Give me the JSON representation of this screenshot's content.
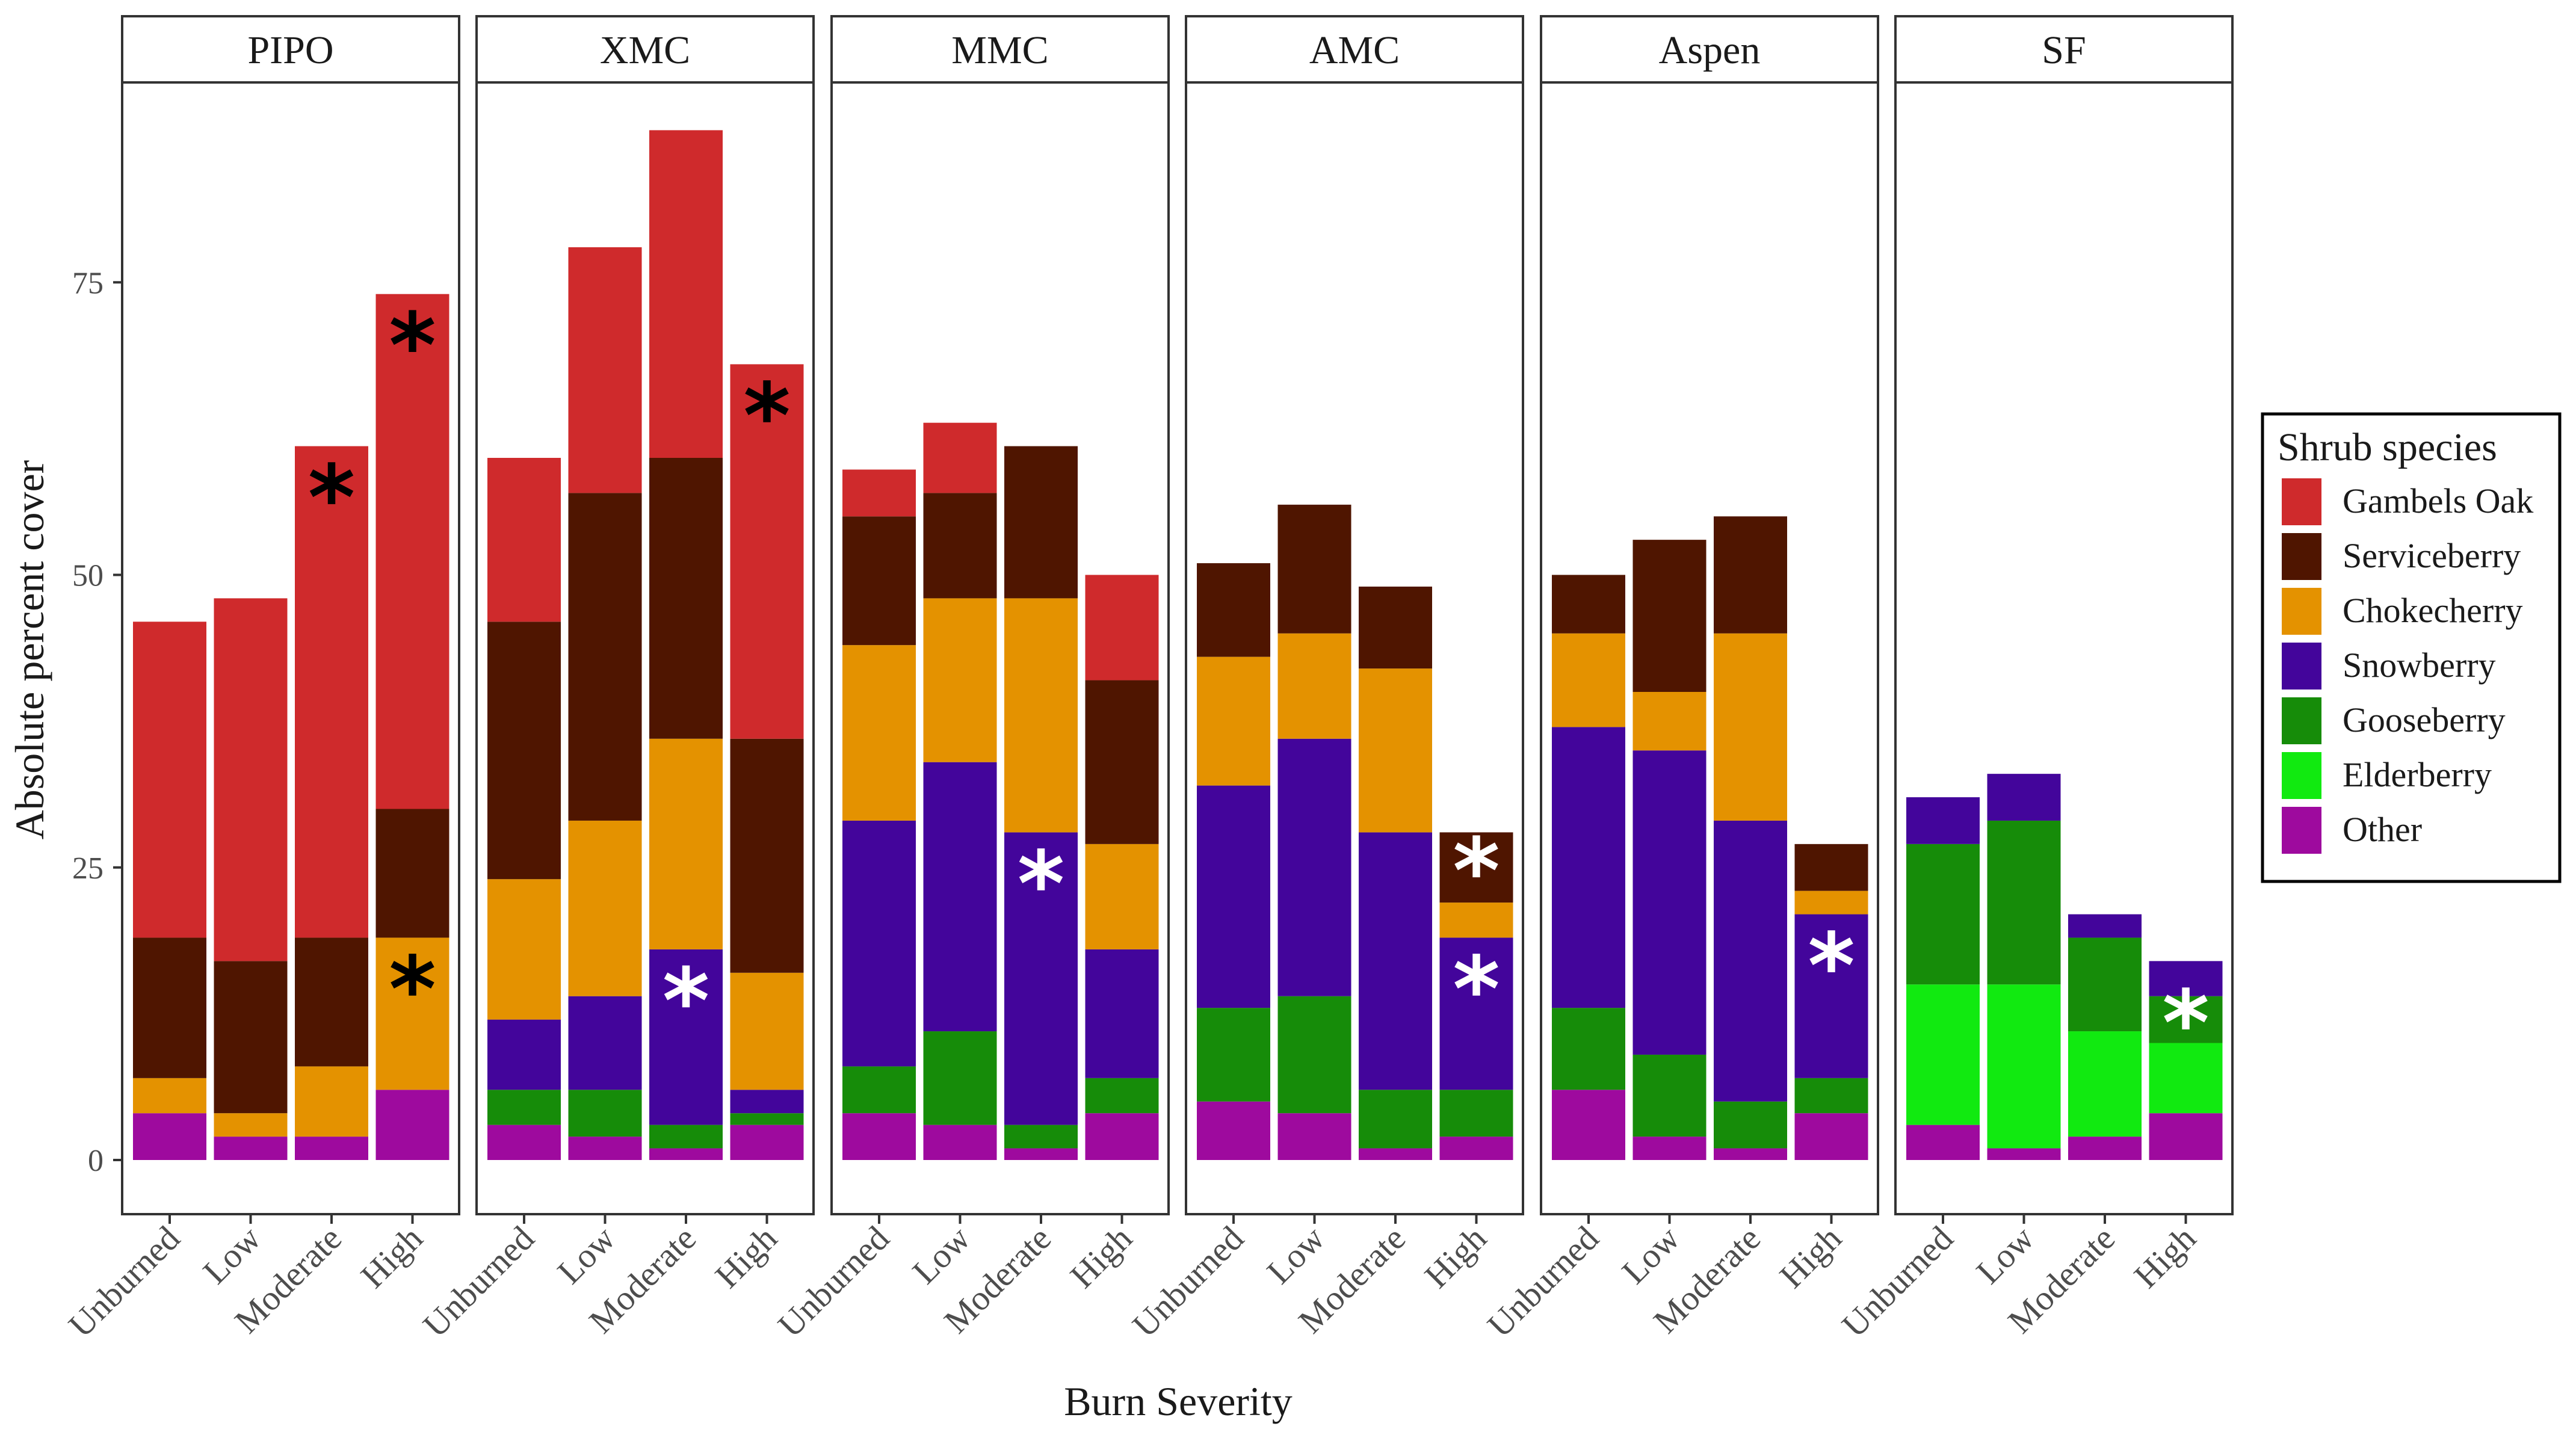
{
  "chart_data": {
    "type": "bar",
    "stacked": true,
    "facets": [
      "PIPO",
      "XMC",
      "MMC",
      "AMC",
      "Aspen",
      "SF"
    ],
    "categories": [
      "Unburned",
      "Low",
      "Moderate",
      "High"
    ],
    "xlabel": "Burn Severity",
    "ylabel": "Absolute percent cover",
    "ylim": [
      0,
      92
    ],
    "yticks": [
      0,
      25,
      50,
      75
    ],
    "legend_title": "Shrub species",
    "legend_position": "right",
    "series_order": [
      "Gambels Oak",
      "Serviceberry",
      "Chokecherry",
      "Snowberry",
      "Gooseberry",
      "Elderberry",
      "Other"
    ],
    "stack_order": [
      "Other",
      "Elderberry",
      "Gooseberry",
      "Snowberry",
      "Chokecherry",
      "Serviceberry",
      "Gambels Oak"
    ],
    "colors": {
      "Gambels Oak": "#cf2a2c",
      "Serviceberry": "#4f1500",
      "Chokecherry": "#e49200",
      "Snowberry": "#43059b",
      "Gooseberry": "#168c09",
      "Elderberry": "#11ea10",
      "Other": "#9e0a9e"
    },
    "star_symbol": "*",
    "panels": [
      {
        "facet": "PIPO",
        "series": [
          {
            "name": "Other",
            "values": [
              4,
              2,
              2,
              6
            ]
          },
          {
            "name": "Elderberry",
            "values": [
              0,
              0,
              0,
              0
            ]
          },
          {
            "name": "Gooseberry",
            "values": [
              0,
              0,
              0,
              0
            ]
          },
          {
            "name": "Snowberry",
            "values": [
              0,
              0,
              0,
              0
            ]
          },
          {
            "name": "Chokecherry",
            "values": [
              3,
              2,
              6,
              13
            ]
          },
          {
            "name": "Serviceberry",
            "values": [
              12,
              13,
              11,
              11
            ]
          },
          {
            "name": "Gambels Oak",
            "values": [
              27,
              31,
              42,
              44
            ]
          }
        ],
        "stars": [
          {
            "category": "Moderate",
            "series": "Gambels Oak",
            "color": "#000000"
          },
          {
            "category": "High",
            "series": "Gambels Oak",
            "color": "#000000"
          },
          {
            "category": "High",
            "series": "Chokecherry",
            "color": "#000000"
          }
        ]
      },
      {
        "facet": "XMC",
        "series": [
          {
            "name": "Other",
            "values": [
              3,
              2,
              1,
              3
            ]
          },
          {
            "name": "Elderberry",
            "values": [
              0,
              0,
              0,
              0
            ]
          },
          {
            "name": "Gooseberry",
            "values": [
              3,
              4,
              2,
              1
            ]
          },
          {
            "name": "Snowberry",
            "values": [
              6,
              8,
              15,
              2
            ]
          },
          {
            "name": "Chokecherry",
            "values": [
              12,
              15,
              18,
              10
            ]
          },
          {
            "name": "Serviceberry",
            "values": [
              22,
              28,
              24,
              20
            ]
          },
          {
            "name": "Gambels Oak",
            "values": [
              14,
              21,
              28,
              32
            ]
          }
        ],
        "stars": [
          {
            "category": "Moderate",
            "series": "Snowberry",
            "color": "#ffffff"
          },
          {
            "category": "High",
            "series": "Gambels Oak",
            "color": "#000000"
          }
        ]
      },
      {
        "facet": "MMC",
        "series": [
          {
            "name": "Other",
            "values": [
              4,
              3,
              1,
              4
            ]
          },
          {
            "name": "Elderberry",
            "values": [
              0,
              0,
              0,
              0
            ]
          },
          {
            "name": "Gooseberry",
            "values": [
              4,
              8,
              2,
              3
            ]
          },
          {
            "name": "Snowberry",
            "values": [
              21,
              23,
              25,
              11
            ]
          },
          {
            "name": "Chokecherry",
            "values": [
              15,
              14,
              20,
              9
            ]
          },
          {
            "name": "Serviceberry",
            "values": [
              11,
              9,
              13,
              14
            ]
          },
          {
            "name": "Gambels Oak",
            "values": [
              4,
              6,
              0,
              9
            ]
          }
        ],
        "stars": [
          {
            "category": "Moderate",
            "series": "Snowberry",
            "color": "#ffffff"
          }
        ]
      },
      {
        "facet": "AMC",
        "series": [
          {
            "name": "Other",
            "values": [
              5,
              4,
              1,
              2
            ]
          },
          {
            "name": "Elderberry",
            "values": [
              0,
              0,
              0,
              0
            ]
          },
          {
            "name": "Gooseberry",
            "values": [
              8,
              10,
              5,
              4
            ]
          },
          {
            "name": "Snowberry",
            "values": [
              19,
              22,
              22,
              13
            ]
          },
          {
            "name": "Chokecherry",
            "values": [
              11,
              9,
              14,
              3
            ]
          },
          {
            "name": "Serviceberry",
            "values": [
              8,
              11,
              7,
              6
            ]
          },
          {
            "name": "Gambels Oak",
            "values": [
              0,
              0,
              0,
              0
            ]
          }
        ],
        "stars": [
          {
            "category": "High",
            "series": "Serviceberry",
            "color": "#ffffff"
          },
          {
            "category": "High",
            "series": "Snowberry",
            "color": "#ffffff"
          }
        ]
      },
      {
        "facet": "Aspen",
        "series": [
          {
            "name": "Other",
            "values": [
              6,
              2,
              1,
              4
            ]
          },
          {
            "name": "Elderberry",
            "values": [
              0,
              0,
              0,
              0
            ]
          },
          {
            "name": "Gooseberry",
            "values": [
              7,
              7,
              4,
              3
            ]
          },
          {
            "name": "Snowberry",
            "values": [
              24,
              26,
              24,
              14
            ]
          },
          {
            "name": "Chokecherry",
            "values": [
              8,
              5,
              16,
              2
            ]
          },
          {
            "name": "Serviceberry",
            "values": [
              5,
              13,
              10,
              4
            ]
          },
          {
            "name": "Gambels Oak",
            "values": [
              0,
              0,
              0,
              0
            ]
          }
        ],
        "stars": [
          {
            "category": "High",
            "series": "Snowberry",
            "color": "#ffffff"
          }
        ]
      },
      {
        "facet": "SF",
        "series": [
          {
            "name": "Other",
            "values": [
              3,
              1,
              2,
              4
            ]
          },
          {
            "name": "Elderberry",
            "values": [
              12,
              14,
              9,
              6
            ]
          },
          {
            "name": "Gooseberry",
            "values": [
              12,
              14,
              8,
              4
            ]
          },
          {
            "name": "Snowberry",
            "values": [
              4,
              4,
              2,
              3
            ]
          },
          {
            "name": "Chokecherry",
            "values": [
              0,
              0,
              0,
              0
            ]
          },
          {
            "name": "Serviceberry",
            "values": [
              0,
              0,
              0,
              0
            ]
          },
          {
            "name": "Gambels Oak",
            "values": [
              0,
              0,
              0,
              0
            ]
          }
        ],
        "stars": [
          {
            "category": "High",
            "series": "Gooseberry",
            "color": "#ffffff"
          }
        ]
      }
    ]
  }
}
